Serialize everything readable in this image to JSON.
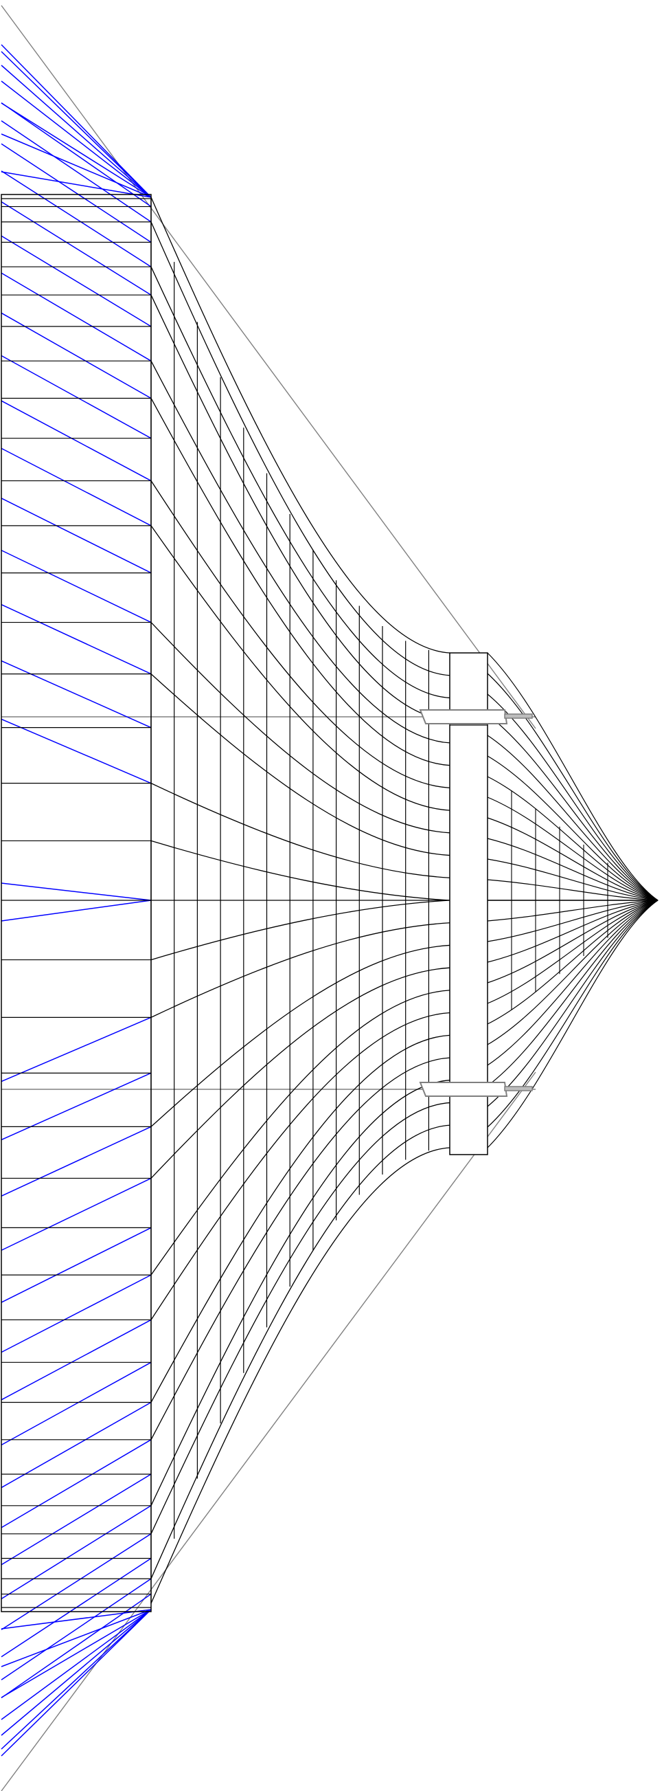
{
  "diagram": {
    "kind": "structural line drawing",
    "colors": {
      "background": "#ffffff",
      "structure": "#000000",
      "blue_lines": "#0000ff",
      "guide": "#808080",
      "beam_fill": "#ffffff",
      "beam_stroke": "#7f7f7f"
    },
    "counts": {
      "vertical_columns": 14,
      "fan_curves_per_side": 11
    }
  }
}
